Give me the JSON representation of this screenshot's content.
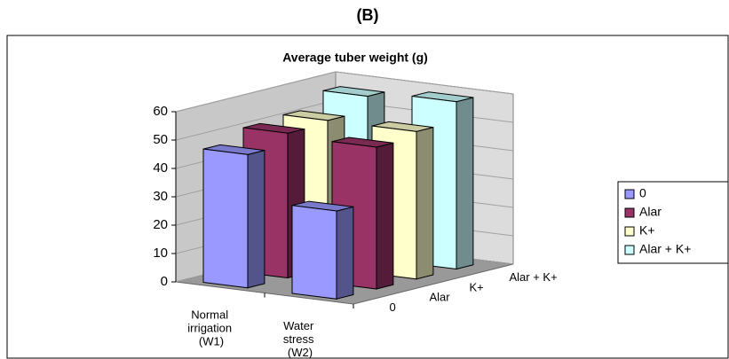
{
  "chart_data": {
    "type": "bar3d",
    "panel_label": "(B)",
    "title": "Average tuber weight (g)",
    "categories": [
      "Normal irrigation (W1)",
      "Water stress (W2)"
    ],
    "depth_labels": [
      "0",
      "Alar",
      "K+",
      "Alar + K+"
    ],
    "series": [
      {
        "name": "0",
        "color": "#9999ff",
        "values": [
          47,
          31
        ]
      },
      {
        "name": "Alar",
        "color": "#993366",
        "values": [
          51,
          50
        ]
      },
      {
        "name": "K+",
        "color": "#ffffcc",
        "values": [
          52,
          52
        ]
      },
      {
        "name": "Alar + K+",
        "color": "#ccffff",
        "values": [
          57,
          59
        ]
      }
    ],
    "ylim": [
      0,
      60
    ],
    "yticks": [
      0,
      10,
      20,
      30,
      40,
      50,
      60
    ],
    "grid": true,
    "legend": "right"
  }
}
